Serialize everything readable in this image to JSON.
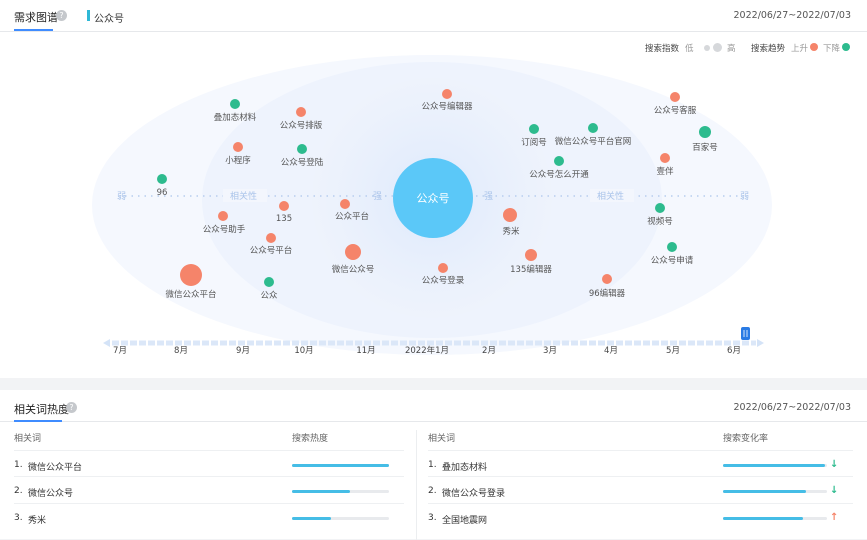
{
  "header": {
    "tab_title": "需求图谱",
    "help": "?",
    "keyword": "公众号",
    "date_range": "2022/06/27~2022/07/03"
  },
  "legend": {
    "index_label": "搜索指数",
    "low": "低",
    "high": "高",
    "trend_label": "搜索趋势",
    "up": "上升",
    "down": "下降",
    "up_color": "#f5846a",
    "down_color": "#2dbb8e"
  },
  "graph": {
    "center": "公众号",
    "weak": "弱",
    "relevance": "相关性",
    "strong": "强",
    "nodes": [
      {
        "label": "叠加态材料",
        "trend": "down"
      },
      {
        "label": "公众号排版",
        "trend": "up"
      },
      {
        "label": "小程序",
        "trend": "up"
      },
      {
        "label": "公众号登陆",
        "trend": "down"
      },
      {
        "label": "96",
        "trend": "down"
      },
      {
        "label": "135",
        "trend": "up"
      },
      {
        "label": "公众号助手",
        "trend": "up"
      },
      {
        "label": "公众号平台",
        "trend": "up"
      },
      {
        "label": "公众平台",
        "trend": "up"
      },
      {
        "label": "微信公众号",
        "trend": "up"
      },
      {
        "label": "微信公众平台",
        "trend": "up"
      },
      {
        "label": "公众",
        "trend": "down"
      },
      {
        "label": "公众号编辑器",
        "trend": "up"
      },
      {
        "label": "订阅号",
        "trend": "down"
      },
      {
        "label": "微信公众号平台官网",
        "trend": "down"
      },
      {
        "label": "公众号怎么开通",
        "trend": "down"
      },
      {
        "label": "秀米",
        "trend": "up"
      },
      {
        "label": "135编辑器",
        "trend": "up"
      },
      {
        "label": "公众号登录",
        "trend": "up"
      },
      {
        "label": "96编辑器",
        "trend": "up"
      },
      {
        "label": "公众号客服",
        "trend": "up"
      },
      {
        "label": "百家号",
        "trend": "down"
      },
      {
        "label": "壹伴",
        "trend": "up"
      },
      {
        "label": "视频号",
        "trend": "down"
      },
      {
        "label": "公众号申请",
        "trend": "down"
      }
    ]
  },
  "timeline": {
    "months": [
      "7月",
      "8月",
      "9月",
      "10月",
      "11月",
      "2022年1月",
      "2月",
      "3月",
      "4月",
      "5月",
      "6月"
    ],
    "selected": "6月"
  },
  "related": {
    "title": "相关词热度",
    "help": "?",
    "date_range": "2022/06/27~2022/07/03",
    "left": {
      "col_word": "相关词",
      "col_metric": "搜索热度",
      "rows": [
        {
          "rank": "1.",
          "word": "微信公众平台",
          "level": 1.0
        },
        {
          "rank": "2.",
          "word": "微信公众号",
          "level": 0.6
        },
        {
          "rank": "3.",
          "word": "秀米",
          "level": 0.4
        }
      ]
    },
    "right": {
      "col_word": "相关词",
      "col_metric": "搜索变化率",
      "rows": [
        {
          "rank": "1.",
          "word": "叠加态材料",
          "level": 0.98,
          "trend": "down"
        },
        {
          "rank": "2.",
          "word": "微信公众号登录",
          "level": 0.8,
          "trend": "down"
        },
        {
          "rank": "3.",
          "word": "全国地震网",
          "level": 0.77,
          "trend": "up"
        }
      ]
    }
  }
}
